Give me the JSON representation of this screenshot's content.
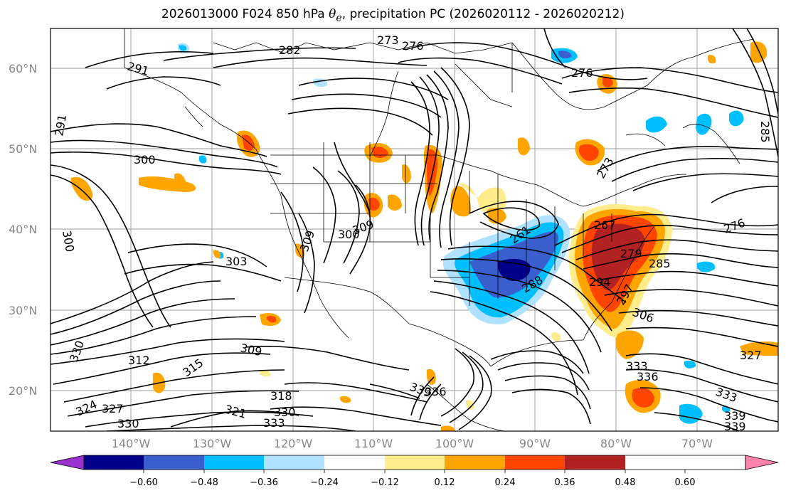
{
  "title": {
    "prefix": "2026013000 F024 850 hPa ",
    "symbol_base": "θ",
    "symbol_sub": "e",
    "suffix": ", precipitation PC (2026020112 - 2026020212)"
  },
  "lat_labels": [
    "60°N",
    "50°N",
    "40°N",
    "30°N",
    "20°N"
  ],
  "lon_labels": [
    "140°W",
    "130°W",
    "120°W",
    "110°W",
    "100°W",
    "90°W",
    "80°W",
    "70°W"
  ],
  "colorbar": {
    "ticks": [
      "−0.60",
      "−0.48",
      "−0.36",
      "−0.24",
      "−0.12",
      "0.12",
      "0.24",
      "0.36",
      "0.48",
      "0.60"
    ],
    "colors": [
      "#9932cc",
      "#00008b",
      "#3a5fcd",
      "#00bfff",
      "#b0e2ff",
      "#ffffff",
      "#ffec8b",
      "#ffa500",
      "#ff4500",
      "#b22222",
      "#ff82ab"
    ]
  },
  "contour_labels": [
    "273",
    "282",
    "276",
    "276",
    "291",
    "291",
    "300",
    "300",
    "303",
    "309",
    "300",
    "309",
    "312",
    "315",
    "309",
    "318",
    "321",
    "324",
    "327",
    "330",
    "330",
    "333",
    "330",
    "336",
    "339",
    "261",
    "267",
    "279",
    "285",
    "288",
    "294",
    "297",
    "306",
    "276",
    "273",
    "327",
    "333",
    "336",
    "333",
    "339",
    "339",
    "285"
  ]
}
